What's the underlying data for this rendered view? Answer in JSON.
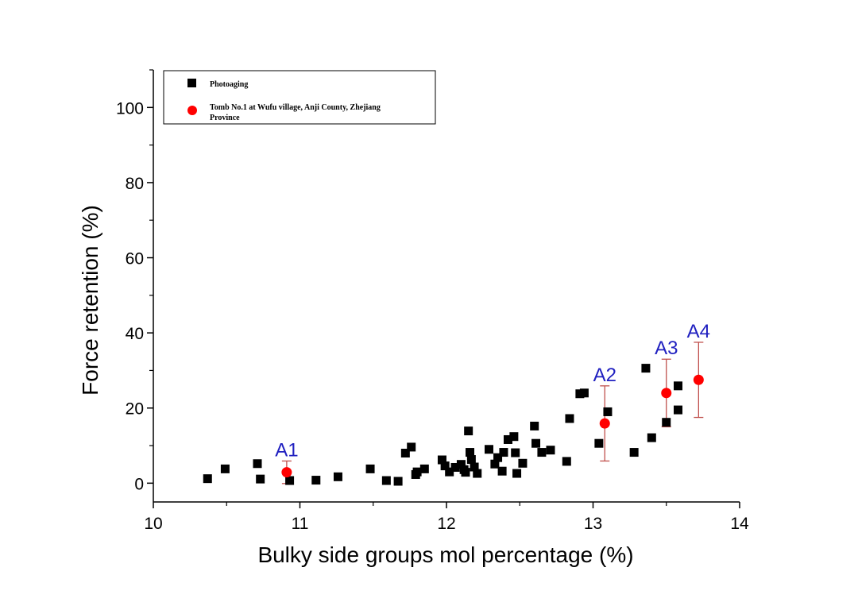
{
  "chart_data": {
    "type": "scatter",
    "xlabel": "Bulky side groups mol percentage (%)",
    "ylabel": "Force retention (%)",
    "xlim": [
      10,
      14
    ],
    "ylim": [
      -5,
      110
    ],
    "x_ticks": [
      10,
      11,
      12,
      13,
      14
    ],
    "y_ticks": [
      0,
      20,
      40,
      60,
      80,
      100
    ],
    "x_tick_labels": [
      "10",
      "11",
      "12",
      "13",
      "14"
    ],
    "y_tick_labels": [
      "0",
      "20",
      "40",
      "60",
      "80",
      "100"
    ],
    "legend_position": "top-left",
    "series": [
      {
        "name": "Photoaging",
        "marker": "square",
        "color": "#000000",
        "points": [
          {
            "x": 10.37,
            "y": 1.2
          },
          {
            "x": 10.49,
            "y": 3.8
          },
          {
            "x": 10.71,
            "y": 5.2
          },
          {
            "x": 10.73,
            "y": 1.1
          },
          {
            "x": 10.93,
            "y": 0.7
          },
          {
            "x": 11.11,
            "y": 0.8
          },
          {
            "x": 11.26,
            "y": 1.7
          },
          {
            "x": 11.48,
            "y": 3.8
          },
          {
            "x": 11.59,
            "y": 0.7
          },
          {
            "x": 11.67,
            "y": 0.5
          },
          {
            "x": 11.72,
            "y": 8.0
          },
          {
            "x": 11.76,
            "y": 9.6
          },
          {
            "x": 11.79,
            "y": 2.3
          },
          {
            "x": 11.8,
            "y": 3.0
          },
          {
            "x": 11.85,
            "y": 3.8
          },
          {
            "x": 11.97,
            "y": 6.2
          },
          {
            "x": 11.99,
            "y": 4.6
          },
          {
            "x": 12.02,
            "y": 3.0
          },
          {
            "x": 12.06,
            "y": 4.2
          },
          {
            "x": 12.1,
            "y": 5.0
          },
          {
            "x": 12.12,
            "y": 3.6
          },
          {
            "x": 12.13,
            "y": 2.9
          },
          {
            "x": 12.15,
            "y": 13.9
          },
          {
            "x": 12.16,
            "y": 8.2
          },
          {
            "x": 12.17,
            "y": 6.3
          },
          {
            "x": 12.19,
            "y": 4.3
          },
          {
            "x": 12.21,
            "y": 2.6
          },
          {
            "x": 12.29,
            "y": 9.0
          },
          {
            "x": 12.33,
            "y": 5.1
          },
          {
            "x": 12.35,
            "y": 6.8
          },
          {
            "x": 12.38,
            "y": 3.2
          },
          {
            "x": 12.39,
            "y": 8.2
          },
          {
            "x": 12.42,
            "y": 11.6
          },
          {
            "x": 12.46,
            "y": 12.4
          },
          {
            "x": 12.47,
            "y": 8.1
          },
          {
            "x": 12.48,
            "y": 2.6
          },
          {
            "x": 12.52,
            "y": 5.3
          },
          {
            "x": 12.6,
            "y": 15.2
          },
          {
            "x": 12.61,
            "y": 10.6
          },
          {
            "x": 12.65,
            "y": 8.2
          },
          {
            "x": 12.71,
            "y": 8.8
          },
          {
            "x": 12.82,
            "y": 5.8
          },
          {
            "x": 12.84,
            "y": 17.2
          },
          {
            "x": 12.91,
            "y": 23.8
          },
          {
            "x": 12.94,
            "y": 24.0
          },
          {
            "x": 13.04,
            "y": 10.6
          },
          {
            "x": 13.1,
            "y": 19.0
          },
          {
            "x": 13.28,
            "y": 8.2
          },
          {
            "x": 13.36,
            "y": 30.6
          },
          {
            "x": 13.4,
            "y": 12.1
          },
          {
            "x": 13.5,
            "y": 16.2
          },
          {
            "x": 13.58,
            "y": 19.5
          },
          {
            "x": 13.58,
            "y": 25.9
          }
        ]
      },
      {
        "name": "Tomb No.1 at Wufu village, Anji County, Zhejiang Province",
        "marker": "circle",
        "color": "#ff0000",
        "error_color": "#c0504d",
        "points": [
          {
            "x": 10.91,
            "y": 2.9,
            "err": 3.0,
            "label": "A1"
          },
          {
            "x": 13.08,
            "y": 15.9,
            "err": 10.0,
            "label": "A2"
          },
          {
            "x": 13.5,
            "y": 24.0,
            "err": 9.0,
            "label": "A3"
          },
          {
            "x": 13.72,
            "y": 27.5,
            "err": 10.0,
            "label": "A4"
          }
        ]
      }
    ],
    "legend_entries": [
      {
        "label": "Photoaging"
      },
      {
        "label_line1": "Tomb No.1 at Wufu village, Anji County, Zhejiang",
        "label_line2": "Province"
      }
    ]
  }
}
